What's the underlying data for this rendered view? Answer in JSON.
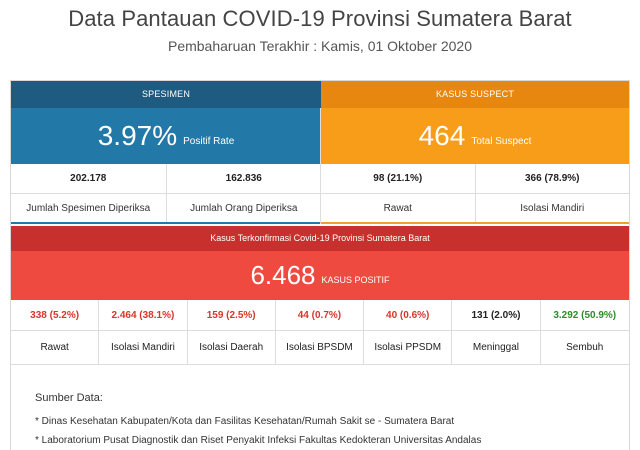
{
  "header": {
    "title": "Data Pantauan COVID-19 Provinsi Sumatera Barat",
    "subtitle": "Pembaharuan Terakhir : Kamis, 01 Oktober 2020"
  },
  "specimen": {
    "heading": "SPESIMEN",
    "big_value": "3.97%",
    "big_label": "Positif Rate",
    "cells": [
      {
        "value": "202.178",
        "label": "Jumlah Spesimen Diperiksa"
      },
      {
        "value": "162.836",
        "label": "Jumlah Orang Diperiksa"
      }
    ]
  },
  "suspect": {
    "heading": "KASUS SUSPECT",
    "big_value": "464",
    "big_label": "Total Suspect",
    "cells": [
      {
        "value": "98 (21.1%)",
        "label": "Rawat"
      },
      {
        "value": "366 (78.9%)",
        "label": "Isolasi Mandiri"
      }
    ]
  },
  "confirmed": {
    "heading": "Kasus Terkonfirmasi Covid-19 Provinsi Sumatera Barat",
    "big_value": "6.468",
    "big_label": "KASUS POSITIF",
    "cells": [
      {
        "value": "338 (5.2%)",
        "label": "Rawat",
        "color": "#d9342b"
      },
      {
        "value": "2.464 (38.1%)",
        "label": "Isolasi Mandiri",
        "color": "#d9342b"
      },
      {
        "value": "159 (2.5%)",
        "label": "Isolasi Daerah",
        "color": "#d9342b"
      },
      {
        "value": "44 (0.7%)",
        "label": "Isolasi BPSDM",
        "color": "#d9342b"
      },
      {
        "value": "40 (0.6%)",
        "label": "Isolasi PPSDM",
        "color": "#d9342b"
      },
      {
        "value": "131 (2.0%)",
        "label": "Meninggal",
        "color": "#222222"
      },
      {
        "value": "3.292 (50.9%)",
        "label": "Sembuh",
        "color": "#2e8b2e"
      }
    ]
  },
  "sources": {
    "title": "Sumber Data:",
    "items": [
      "* Dinas Kesehatan Kabupaten/Kota dan Fasilitas Kesehatan/Rumah Sakit se - Sumatera Barat",
      "* Laboratorium Pusat Diagnostik dan Riset Penyakit Infeksi Fakultas Kedokteran Universitas Andalas"
    ]
  },
  "colors": {
    "specimen_head": "#1f5b81",
    "specimen_body": "#2279a8",
    "suspect_head": "#e8870f",
    "suspect_body": "#f89d1a",
    "confirmed_head": "#c8302e",
    "confirmed_body": "#ef4a40"
  }
}
